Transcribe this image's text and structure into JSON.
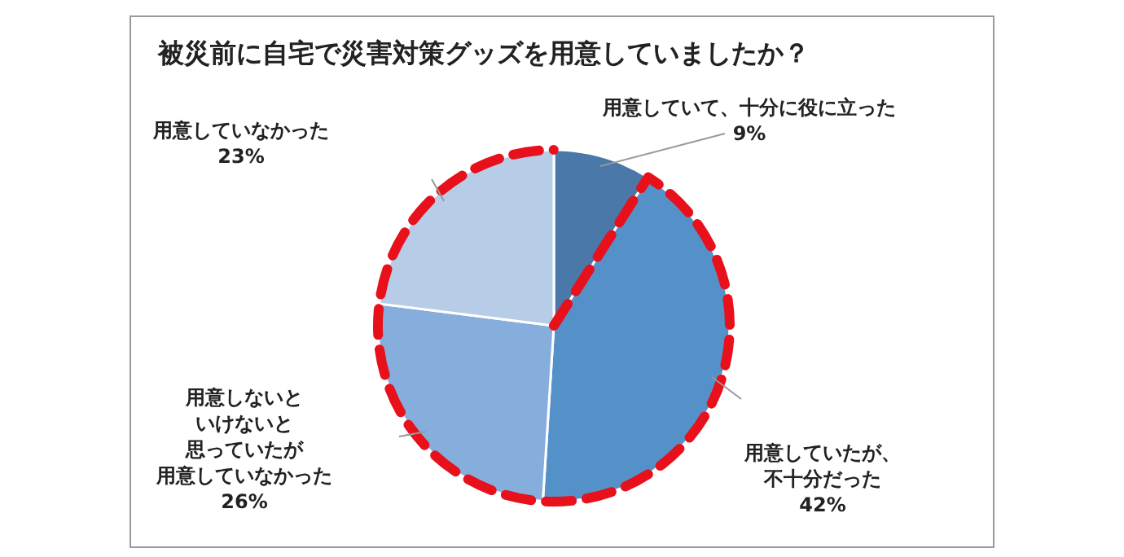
{
  "chart_data": {
    "type": "pie",
    "title": "被災前に自宅で災害対策グッズを用意していましたか？",
    "categories": [
      "用意していて、十分に役に立った",
      "用意していたが、不十分だった",
      "用意しないといけないと思っていたが用意していなかった",
      "用意していなかった"
    ],
    "values": [
      9,
      42,
      26,
      23
    ],
    "value_labels": [
      "9%",
      "42%",
      "26%",
      "23%"
    ],
    "colors": [
      "#4a78a9",
      "#5591c9",
      "#86aedc",
      "#b7cce7"
    ]
  }
}
